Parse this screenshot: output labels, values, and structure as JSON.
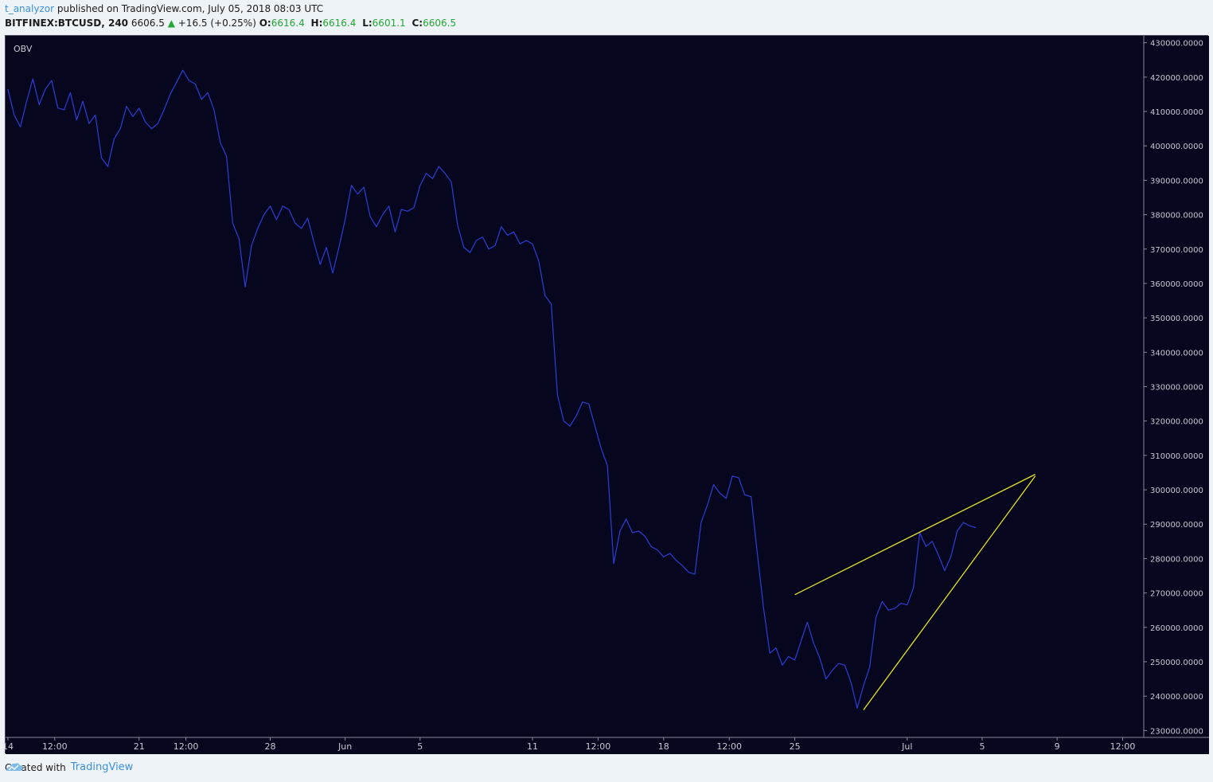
{
  "header": {
    "author": "t_analyzor",
    "published_text": "published on TradingView.com, July 05, 2018 08:03 UTC",
    "symbol": "BITFINEX:BTCUSD, 240",
    "last_price": "6606.5",
    "change_arrow": "▲",
    "change": "+16.5 (+0.25%)",
    "open_label": "O:",
    "open": "6616.4",
    "high_label": "H:",
    "high": "6616.4",
    "low_label": "L:",
    "low": "6601.1",
    "close_label": "C:",
    "close": "6606.5"
  },
  "footer": {
    "created_with": "Created with",
    "brand": "TradingView",
    "logo_icon": "tradingview-cloud-icon"
  },
  "colors": {
    "background": "#07061f",
    "series": "#2b3fd6",
    "trendline": "#e5e522",
    "axis_text": "#c8c8d0",
    "up": "#22a832"
  },
  "chart_data": {
    "type": "line",
    "indicator_label": "OBV",
    "ylim": [
      228000,
      432000
    ],
    "y_ticks": [
      {
        "value": 230000,
        "label": "230000.0000"
      },
      {
        "value": 240000,
        "label": "240000.0000"
      },
      {
        "value": 250000,
        "label": "250000.0000"
      },
      {
        "value": 260000,
        "label": "260000.0000"
      },
      {
        "value": 270000,
        "label": "270000.0000"
      },
      {
        "value": 280000,
        "label": "280000.0000"
      },
      {
        "value": 290000,
        "label": "290000.0000"
      },
      {
        "value": 300000,
        "label": "300000.0000"
      },
      {
        "value": 310000,
        "label": "310000.0000"
      },
      {
        "value": 320000,
        "label": "320000.0000"
      },
      {
        "value": 330000,
        "label": "330000.0000"
      },
      {
        "value": 340000,
        "label": "340000.0000"
      },
      {
        "value": 350000,
        "label": "350000.0000"
      },
      {
        "value": 360000,
        "label": "360000.0000"
      },
      {
        "value": 370000,
        "label": "370000.0000"
      },
      {
        "value": 380000,
        "label": "380000.0000"
      },
      {
        "value": 390000,
        "label": "390000.0000"
      },
      {
        "value": 400000,
        "label": "400000.0000"
      },
      {
        "value": 410000,
        "label": "410000.0000"
      },
      {
        "value": 420000,
        "label": "420000.0000"
      },
      {
        "value": 430000,
        "label": "430000.0000"
      }
    ],
    "x_ticks": [
      {
        "value": "2018-05-14 00:00",
        "label": "14"
      },
      {
        "value": "2018-05-16 12:00",
        "label": "12:00"
      },
      {
        "value": "2018-05-21 00:00",
        "label": "21"
      },
      {
        "value": "2018-05-23 12:00",
        "label": "12:00"
      },
      {
        "value": "2018-05-28 00:00",
        "label": "28"
      },
      {
        "value": "2018-06-01 00:00",
        "label": "Jun"
      },
      {
        "value": "2018-06-05 00:00",
        "label": "5"
      },
      {
        "value": "2018-06-11 00:00",
        "label": "11"
      },
      {
        "value": "2018-06-14 12:00",
        "label": "12:00"
      },
      {
        "value": "2018-06-18 00:00",
        "label": "18"
      },
      {
        "value": "2018-06-21 12:00",
        "label": "12:00"
      },
      {
        "value": "2018-06-25 00:00",
        "label": "25"
      },
      {
        "value": "2018-07-01 00:00",
        "label": "Jul"
      },
      {
        "value": "2018-07-05 00:00",
        "label": "5"
      },
      {
        "value": "2018-07-09 00:00",
        "label": "9"
      },
      {
        "value": "2018-07-12 12:00",
        "label": "12:00"
      }
    ],
    "series": [
      {
        "color": "#2b3fd6",
        "points": [
          [
            "2018-05-14 00:00",
            416500
          ],
          [
            "2018-05-14 08:00",
            409000
          ],
          [
            "2018-05-14 16:00",
            405500
          ],
          [
            "2018-05-15 00:00",
            413000
          ],
          [
            "2018-05-15 08:00",
            419500
          ],
          [
            "2018-05-15 16:00",
            412000
          ],
          [
            "2018-05-16 00:00",
            416500
          ],
          [
            "2018-05-16 08:00",
            419000
          ],
          [
            "2018-05-16 16:00",
            411000
          ],
          [
            "2018-05-17 00:00",
            410500
          ],
          [
            "2018-05-17 08:00",
            415500
          ],
          [
            "2018-05-17 16:00",
            407500
          ],
          [
            "2018-05-18 00:00",
            413000
          ],
          [
            "2018-05-18 08:00",
            406500
          ],
          [
            "2018-05-18 16:00",
            409000
          ],
          [
            "2018-05-19 00:00",
            396500
          ],
          [
            "2018-05-19 08:00",
            394000
          ],
          [
            "2018-05-19 16:00",
            402000
          ],
          [
            "2018-05-20 00:00",
            405000
          ],
          [
            "2018-05-20 08:00",
            411500
          ],
          [
            "2018-05-20 16:00",
            408500
          ],
          [
            "2018-05-21 00:00",
            411000
          ],
          [
            "2018-05-21 08:00",
            407000
          ],
          [
            "2018-05-21 16:00",
            405000
          ],
          [
            "2018-05-22 00:00",
            406500
          ],
          [
            "2018-05-22 08:00",
            410500
          ],
          [
            "2018-05-22 16:00",
            415000
          ],
          [
            "2018-05-23 00:00",
            418500
          ],
          [
            "2018-05-23 08:00",
            422000
          ],
          [
            "2018-05-23 16:00",
            419000
          ],
          [
            "2018-05-24 00:00",
            418000
          ],
          [
            "2018-05-24 08:00",
            413500
          ],
          [
            "2018-05-24 16:00",
            415500
          ],
          [
            "2018-05-25 00:00",
            410500
          ],
          [
            "2018-05-25 08:00",
            401000
          ],
          [
            "2018-05-25 16:00",
            397000
          ],
          [
            "2018-05-26 00:00",
            377500
          ],
          [
            "2018-05-26 08:00",
            373000
          ],
          [
            "2018-05-26 16:00",
            359000
          ],
          [
            "2018-05-27 00:00",
            371000
          ],
          [
            "2018-05-27 08:00",
            376000
          ],
          [
            "2018-05-27 16:00",
            380000
          ],
          [
            "2018-05-28 00:00",
            382500
          ],
          [
            "2018-05-28 08:00",
            378500
          ],
          [
            "2018-05-28 16:00",
            382500
          ],
          [
            "2018-05-29 00:00",
            381500
          ],
          [
            "2018-05-29 08:00",
            377500
          ],
          [
            "2018-05-29 16:00",
            376000
          ],
          [
            "2018-05-30 00:00",
            379000
          ],
          [
            "2018-05-30 08:00",
            372000
          ],
          [
            "2018-05-30 16:00",
            365500
          ],
          [
            "2018-05-31 00:00",
            370500
          ],
          [
            "2018-05-31 08:00",
            363000
          ],
          [
            "2018-05-31 16:00",
            370500
          ],
          [
            "2018-06-01 00:00",
            378500
          ],
          [
            "2018-06-01 08:00",
            388500
          ],
          [
            "2018-06-01 16:00",
            386000
          ],
          [
            "2018-06-02 00:00",
            388000
          ],
          [
            "2018-06-02 08:00",
            379500
          ],
          [
            "2018-06-02 16:00",
            376500
          ],
          [
            "2018-06-03 00:00",
            380000
          ],
          [
            "2018-06-03 08:00",
            382500
          ],
          [
            "2018-06-03 16:00",
            375000
          ],
          [
            "2018-06-04 00:00",
            381500
          ],
          [
            "2018-06-04 08:00",
            381000
          ],
          [
            "2018-06-04 16:00",
            382000
          ],
          [
            "2018-06-05 00:00",
            388500
          ],
          [
            "2018-06-05 08:00",
            392000
          ],
          [
            "2018-06-05 16:00",
            390500
          ],
          [
            "2018-06-06 00:00",
            394000
          ],
          [
            "2018-06-06 08:00",
            392000
          ],
          [
            "2018-06-06 16:00",
            389500
          ],
          [
            "2018-06-07 00:00",
            377000
          ],
          [
            "2018-06-07 08:00",
            370500
          ],
          [
            "2018-06-07 16:00",
            369000
          ],
          [
            "2018-06-08 00:00",
            372500
          ],
          [
            "2018-06-08 08:00",
            373500
          ],
          [
            "2018-06-08 16:00",
            370000
          ],
          [
            "2018-06-09 00:00",
            371000
          ],
          [
            "2018-06-09 08:00",
            376500
          ],
          [
            "2018-06-09 16:00",
            374000
          ],
          [
            "2018-06-10 00:00",
            375000
          ],
          [
            "2018-06-10 08:00",
            371500
          ],
          [
            "2018-06-10 16:00",
            372500
          ],
          [
            "2018-06-11 00:00",
            371500
          ],
          [
            "2018-06-11 08:00",
            366500
          ],
          [
            "2018-06-11 16:00",
            356500
          ],
          [
            "2018-06-12 00:00",
            354000
          ],
          [
            "2018-06-12 08:00",
            327500
          ],
          [
            "2018-06-12 16:00",
            320000
          ],
          [
            "2018-06-13 00:00",
            318500
          ],
          [
            "2018-06-13 08:00",
            321500
          ],
          [
            "2018-06-13 16:00",
            325500
          ],
          [
            "2018-06-14 00:00",
            325000
          ],
          [
            "2018-06-14 08:00",
            318500
          ],
          [
            "2018-06-14 16:00",
            312000
          ],
          [
            "2018-06-15 00:00",
            307000
          ],
          [
            "2018-06-15 08:00",
            278500
          ],
          [
            "2018-06-15 16:00",
            288000
          ],
          [
            "2018-06-16 00:00",
            291500
          ],
          [
            "2018-06-16 08:00",
            287500
          ],
          [
            "2018-06-16 16:00",
            288000
          ],
          [
            "2018-06-17 00:00",
            286500
          ],
          [
            "2018-06-17 08:00",
            283500
          ],
          [
            "2018-06-17 16:00",
            282500
          ],
          [
            "2018-06-18 00:00",
            280500
          ],
          [
            "2018-06-18 08:00",
            281500
          ],
          [
            "2018-06-18 16:00",
            279500
          ],
          [
            "2018-06-19 00:00",
            278000
          ],
          [
            "2018-06-19 08:00",
            276000
          ],
          [
            "2018-06-19 16:00",
            275500
          ],
          [
            "2018-06-20 00:00",
            290500
          ],
          [
            "2018-06-20 08:00",
            295500
          ],
          [
            "2018-06-20 16:00",
            301500
          ],
          [
            "2018-06-21 00:00",
            299000
          ],
          [
            "2018-06-21 08:00",
            297500
          ],
          [
            "2018-06-21 16:00",
            304000
          ],
          [
            "2018-06-22 00:00",
            303500
          ],
          [
            "2018-06-22 08:00",
            298500
          ],
          [
            "2018-06-22 16:00",
            298000
          ],
          [
            "2018-06-23 00:00",
            281500
          ],
          [
            "2018-06-23 08:00",
            265500
          ],
          [
            "2018-06-23 16:00",
            252500
          ],
          [
            "2018-06-24 00:00",
            254000
          ],
          [
            "2018-06-24 08:00",
            249000
          ],
          [
            "2018-06-24 16:00",
            251500
          ],
          [
            "2018-06-25 00:00",
            250500
          ],
          [
            "2018-06-25 08:00",
            256000
          ],
          [
            "2018-06-25 16:00",
            261500
          ],
          [
            "2018-06-26 00:00",
            255500
          ],
          [
            "2018-06-26 08:00",
            251000
          ],
          [
            "2018-06-26 16:00",
            245000
          ],
          [
            "2018-06-27 00:00",
            247500
          ],
          [
            "2018-06-27 08:00",
            249500
          ],
          [
            "2018-06-27 16:00",
            249000
          ],
          [
            "2018-06-28 00:00",
            244000
          ],
          [
            "2018-06-28 08:00",
            236500
          ],
          [
            "2018-06-28 16:00",
            243000
          ],
          [
            "2018-06-29 00:00",
            248500
          ],
          [
            "2018-06-29 08:00",
            263000
          ],
          [
            "2018-06-29 16:00",
            267500
          ],
          [
            "2018-06-30 00:00",
            265000
          ],
          [
            "2018-06-30 08:00",
            265500
          ],
          [
            "2018-06-30 16:00",
            267000
          ],
          [
            "2018-07-01 00:00",
            266500
          ],
          [
            "2018-07-01 08:00",
            271500
          ],
          [
            "2018-07-01 16:00",
            287500
          ],
          [
            "2018-07-02 00:00",
            283500
          ],
          [
            "2018-07-02 08:00",
            285000
          ],
          [
            "2018-07-02 16:00",
            281000
          ],
          [
            "2018-07-03 00:00",
            276500
          ],
          [
            "2018-07-03 08:00",
            280500
          ],
          [
            "2018-07-03 16:00",
            288000
          ],
          [
            "2018-07-04 00:00",
            290500
          ],
          [
            "2018-07-04 08:00",
            289500
          ],
          [
            "2018-07-04 16:00",
            289000
          ]
        ]
      }
    ],
    "trendlines": [
      {
        "color": "#e5e522",
        "from": [
          "2018-06-25 00:00",
          269500
        ],
        "to": [
          "2018-07-07 20:00",
          304500
        ]
      },
      {
        "color": "#e5e522",
        "from": [
          "2018-06-28 16:00",
          236000
        ],
        "to": [
          "2018-07-07 20:00",
          304000
        ]
      }
    ],
    "x_range": [
      "2018-05-13 21:00",
      "2018-07-13 15:00"
    ]
  }
}
